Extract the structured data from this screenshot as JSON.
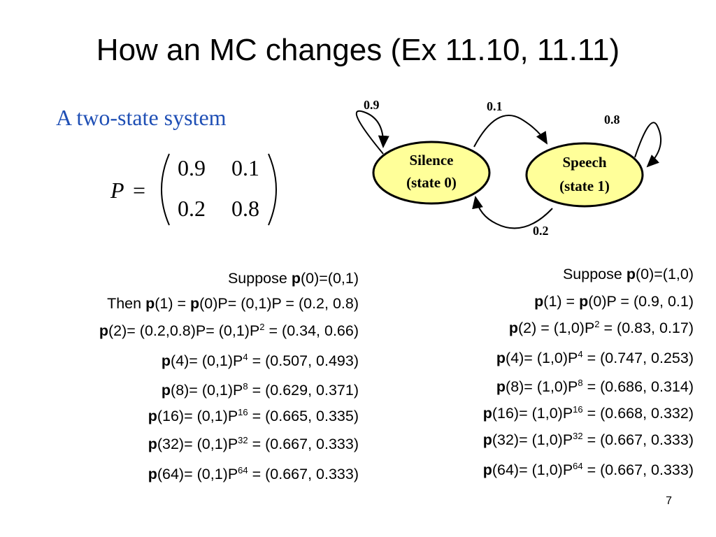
{
  "slide": {
    "title": "How an MC changes (Ex 11.10, 11.11)",
    "subtitle": "A two-state system",
    "page_number": "7"
  },
  "matrix": {
    "symbol": "P",
    "equals": "=",
    "rows": [
      [
        "0.9",
        "0.1"
      ],
      [
        "0.2",
        "0.8"
      ]
    ]
  },
  "diagram": {
    "state0": {
      "line1": "Silence",
      "line2": "(state 0)"
    },
    "state1": {
      "line1": "Speech",
      "line2": "(state 1)"
    },
    "self_loop_0": "0.9",
    "arc_0_to_1": "0.1",
    "self_loop_1": "0.8",
    "arc_1_to_0": "0.2",
    "colors": {
      "fill": "#ffff99",
      "stroke": "#000000"
    }
  },
  "left_column": {
    "header": {
      "pre": "Suppose ",
      "bold": "p",
      "post": "(0)=(0,1)"
    },
    "lines": [
      {
        "pre": "Then ",
        "b1": "p",
        "mid1": "(1) = ",
        "b2": "p",
        "mid2": "(0)P= (0,1)P = (0.2, 0.8)",
        "exp": "",
        "post": ""
      },
      {
        "pre": "",
        "b1": "p",
        "mid1": "(2)= (0.2,0.8)P= (0,1)P",
        "b2": "",
        "mid2": "",
        "exp": "2",
        "post": " = (0.34, 0.66)"
      },
      {
        "pre": "",
        "b1": "p",
        "mid1": "(4)= (0,1)P",
        "b2": "",
        "mid2": "",
        "exp": "4",
        "post": " = (0.507, 0.493)"
      },
      {
        "pre": "",
        "b1": "p",
        "mid1": "(8)= (0,1)P",
        "b2": "",
        "mid2": "",
        "exp": "8",
        "post": " = (0.629, 0.371)"
      },
      {
        "pre": "",
        "b1": "p",
        "mid1": "(16)= (0,1)P",
        "b2": "",
        "mid2": "",
        "exp": "16",
        "post": " = (0.665, 0.335)"
      },
      {
        "pre": "",
        "b1": "p",
        "mid1": "(32)= (0,1)P",
        "b2": "",
        "mid2": "",
        "exp": "32",
        "post": " = (0.667, 0.333)"
      },
      {
        "pre": "",
        "b1": "p",
        "mid1": "(64)= (0,1)P",
        "b2": "",
        "mid2": "",
        "exp": "64",
        "post": " = (0.667, 0.333)"
      }
    ]
  },
  "right_column": {
    "header": {
      "pre": "Suppose ",
      "bold": "p",
      "post": "(0)=(1,0)"
    },
    "lines": [
      {
        "pre": "",
        "b1": "p",
        "mid1": "(1) = ",
        "b2": "p",
        "mid2": "(0)P = (0.9, 0.1)",
        "exp": "",
        "post": ""
      },
      {
        "pre": "",
        "b1": "p",
        "mid1": "(2) = (1,0)P",
        "b2": "",
        "mid2": "",
        "exp": "2",
        "post": " = (0.83, 0.17)"
      },
      {
        "pre": "",
        "b1": "p",
        "mid1": "(4)= (1,0)P",
        "b2": "",
        "mid2": "",
        "exp": "4",
        "post": " = (0.747, 0.253)"
      },
      {
        "pre": "",
        "b1": "p",
        "mid1": "(8)= (1,0)P",
        "b2": "",
        "mid2": "",
        "exp": "8",
        "post": " = (0.686, 0.314)"
      },
      {
        "pre": "",
        "b1": "p",
        "mid1": "(16)= (1,0)P",
        "b2": "",
        "mid2": "",
        "exp": "16",
        "post": " = (0.668, 0.332)"
      },
      {
        "pre": "",
        "b1": "p",
        "mid1": "(32)= (1,0)P",
        "b2": "",
        "mid2": "",
        "exp": "32",
        "post": " = (0.667, 0.333)"
      },
      {
        "pre": "",
        "b1": "p",
        "mid1": "(64)= (1,0)P",
        "b2": "",
        "mid2": "",
        "exp": "64",
        "post": " = (0.667, 0.333)"
      }
    ]
  }
}
